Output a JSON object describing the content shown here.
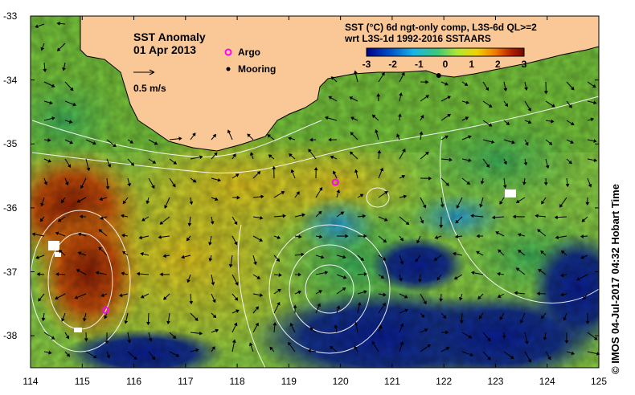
{
  "title": "SST Anomaly",
  "date": "01 Apr 2013",
  "vector_scale_label": "0.5 m/s",
  "legend": {
    "argo": {
      "label": "Argo",
      "color": "#ff00ff"
    },
    "mooring": {
      "label": "Mooring",
      "color": "#000000"
    }
  },
  "colorbar": {
    "title_line1": "SST (°C) 6d ngt-only comp, L3S-6d QL>=2",
    "title_line2": "wrt L3S-1d 1992-2016 SSTAARS",
    "ticks": [
      "-3",
      "-2",
      "-1",
      "0",
      "1",
      "2",
      "3"
    ],
    "range": [
      -3,
      3
    ],
    "colors": [
      "#00008b",
      "#0050c8",
      "#19b4e6",
      "#3cc878",
      "#b4e632",
      "#f0d200",
      "#f07800",
      "#b41e00",
      "#6e0a00"
    ]
  },
  "axes": {
    "lon_ticks": [
      "114",
      "115",
      "116",
      "117",
      "118",
      "119",
      "120",
      "121",
      "122",
      "123",
      "124",
      "125"
    ],
    "lat_ticks": [
      "-33",
      "-34",
      "-35",
      "-36",
      "-37",
      "-38"
    ],
    "lon_range": [
      114,
      125
    ],
    "lat_range": [
      -38.5,
      -33
    ]
  },
  "markers": {
    "argo": [
      {
        "lon": 115.45,
        "lat": -37.6
      },
      {
        "lon": 119.9,
        "lat": -35.6
      }
    ],
    "mooring": [
      {
        "lon": 121.9,
        "lat": -33.93
      }
    ]
  },
  "credit": "© IMOS 04-Jul-2017 04:32 Hobart Time",
  "colors": {
    "land": "#fac896",
    "coast": "#000000",
    "contour": "#ffffff",
    "arrow": "#000000"
  }
}
